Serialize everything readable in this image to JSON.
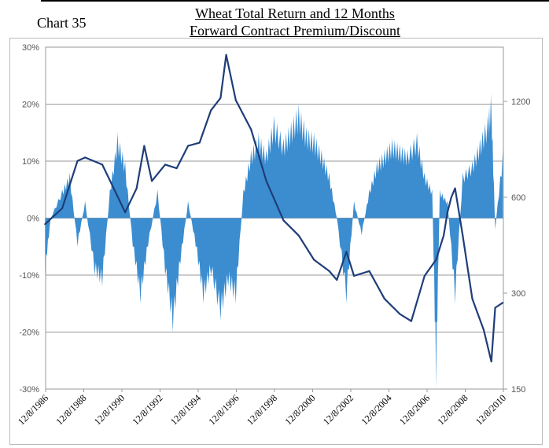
{
  "chart_label": "Chart 35",
  "chart_data": {
    "type": "area+line",
    "title": [
      "Wheat Total Return and 12 Months",
      "Forward Contract Premium/Discount"
    ],
    "left_axis": {
      "ticks": [
        "30%",
        "20%",
        "10%",
        "0%",
        "-10%",
        "-20%",
        "-30%"
      ],
      "values": [
        30,
        20,
        10,
        0,
        -10,
        -20,
        -30
      ],
      "ylim": [
        -30,
        30
      ]
    },
    "right_axis": {
      "scale": "log",
      "ticks": [
        "1200",
        "600",
        "300",
        "150"
      ],
      "values": [
        1200,
        600,
        300,
        150
      ],
      "ylim": [
        150,
        1700
      ]
    },
    "x_ticks": [
      "12/8/1986",
      "12/8/1988",
      "12/8/1990",
      "12/8/1992",
      "12/8/1994",
      "12/8/1996",
      "12/8/1998",
      "12/8/2000",
      "12/8/2002",
      "12/8/2004",
      "12/8/2006",
      "12/8/2008",
      "12/8/2010"
    ],
    "xlim": [
      1986.93,
      2010.93
    ],
    "series": [
      {
        "name": "12 Months Forward Contract Premium/Discount (%)",
        "type": "area",
        "axis": "left",
        "color": "#3b8dd0",
        "x": [
          1986.9,
          1987.2,
          1987.8,
          1988.2,
          1988.6,
          1989.0,
          1989.5,
          1989.9,
          1990.3,
          1990.7,
          1991.1,
          1991.5,
          1991.9,
          1992.3,
          1992.8,
          1993.2,
          1993.6,
          1994.0,
          1994.4,
          1994.8,
          1995.2,
          1995.6,
          1996.1,
          1996.5,
          1996.9,
          1997.3,
          1997.7,
          1998.1,
          1998.5,
          1998.9,
          1999.4,
          1999.8,
          2000.2,
          2000.6,
          2001.0,
          2001.4,
          2001.8,
          2002.2,
          2002.7,
          2003.1,
          2003.5,
          2003.9,
          2004.3,
          2004.7,
          2005.1,
          2005.5,
          2005.9,
          2006.4,
          2006.8,
          2007.2,
          2007.4,
          2007.6,
          2008.0,
          2008.4,
          2008.8,
          2009.3,
          2009.7,
          2010.1,
          2010.3,
          2010.5,
          2010.9
        ],
        "y": [
          -10,
          0,
          5,
          8,
          -5,
          3,
          -10,
          -12,
          5,
          15,
          10,
          -5,
          -15,
          -5,
          5,
          -10,
          -20,
          -8,
          3,
          -5,
          -15,
          -10,
          -18,
          -12,
          -15,
          5,
          12,
          15,
          12,
          18,
          14,
          17,
          20,
          16,
          15,
          12,
          8,
          0,
          -15,
          3,
          -3,
          5,
          10,
          12,
          14,
          13,
          12,
          15,
          8,
          5,
          -30,
          5,
          3,
          -15,
          8,
          10,
          14,
          18,
          22,
          -2,
          12
        ]
      },
      {
        "name": "Wheat Total Return",
        "type": "line",
        "axis": "right",
        "color": "#1f3d78",
        "x": [
          1986.9,
          1987.8,
          1988.6,
          1989.0,
          1989.9,
          1990.5,
          1991.1,
          1991.7,
          1992.1,
          1992.5,
          1993.2,
          1993.8,
          1994.4,
          1995.0,
          1995.6,
          1996.1,
          1996.4,
          1996.9,
          1997.7,
          1998.5,
          1999.4,
          2000.2,
          2001.0,
          2001.8,
          2002.2,
          2002.7,
          2003.1,
          2003.9,
          2004.7,
          2005.5,
          2006.1,
          2006.8,
          2007.4,
          2007.8,
          2008.0,
          2008.2,
          2008.4,
          2008.8,
          2009.3,
          2009.9,
          2010.3,
          2010.5,
          2010.9
        ],
        "y": [
          494,
          554,
          780,
          800,
          760,
          640,
          538,
          640,
          870,
          675,
          760,
          740,
          870,
          890,
          1125,
          1230,
          1680,
          1210,
          980,
          675,
          508,
          455,
          382,
          352,
          330,
          405,
          340,
          352,
          288,
          258,
          245,
          340,
          382,
          455,
          538,
          600,
          640,
          455,
          288,
          230,
          183,
          270,
          280
        ]
      }
    ]
  }
}
